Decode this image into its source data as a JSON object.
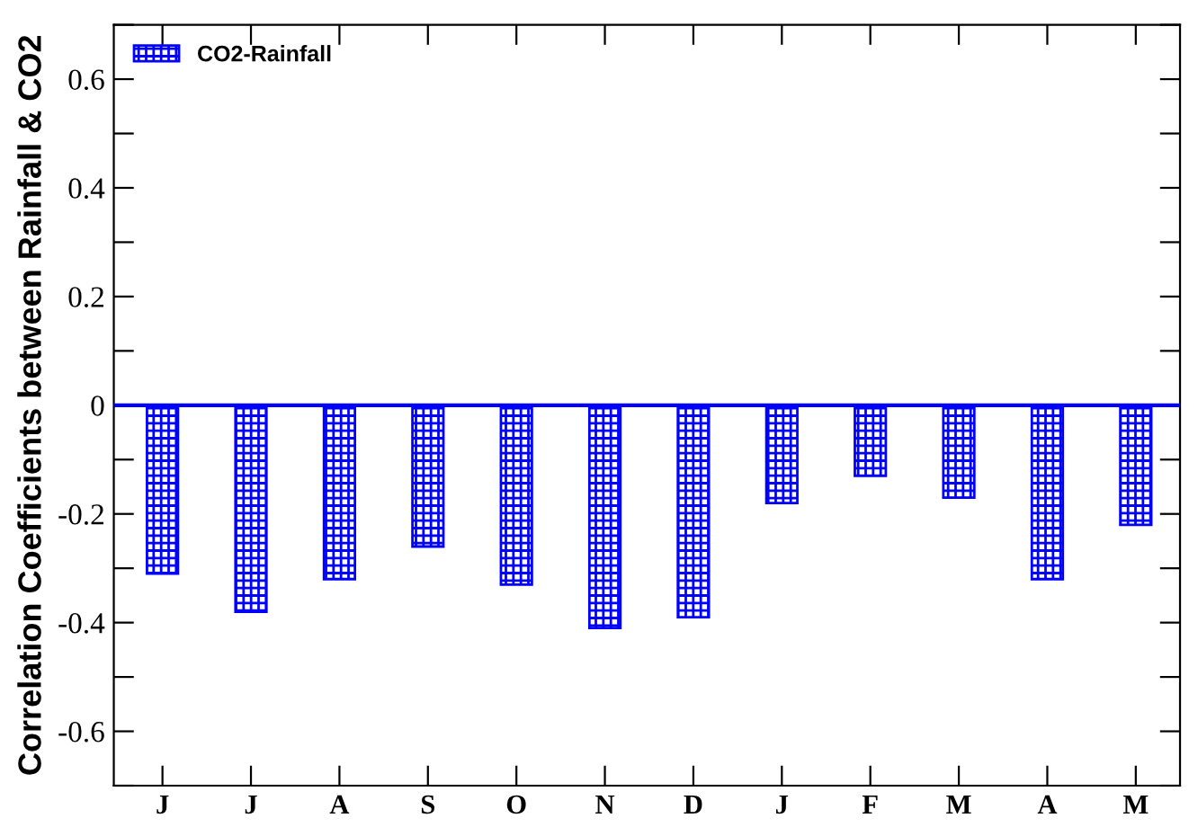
{
  "chart_data": {
    "type": "bar",
    "ylabel": "Correlation Coefficients between Rainfall & CO2",
    "categories": [
      "J",
      "J",
      "A",
      "S",
      "O",
      "N",
      "D",
      "J",
      "F",
      "M",
      "A",
      "M"
    ],
    "series": [
      {
        "name": "CO2-Rainfall",
        "color": "#0000ff",
        "values": [
          -0.31,
          -0.38,
          -0.32,
          -0.26,
          -0.33,
          -0.41,
          -0.39,
          -0.18,
          -0.13,
          -0.17,
          -0.32,
          -0.22
        ]
      }
    ],
    "ylim": [
      -0.7,
      0.7
    ],
    "yticks": [
      {
        "value": -0.7,
        "label": null
      },
      -0.6,
      {
        "value": -0.5,
        "label": null
      },
      -0.4,
      {
        "value": -0.3,
        "label": null
      },
      -0.2,
      {
        "value": -0.1,
        "label": null
      },
      0,
      {
        "value": 0.1,
        "label": null
      },
      0.2,
      {
        "value": 0.3,
        "label": null
      },
      0.4,
      {
        "value": 0.5,
        "label": null
      },
      0.6,
      {
        "value": 0.7,
        "label": null
      }
    ],
    "ref_lines": [
      {
        "axis": "y",
        "value": 0,
        "color": "#0000ff"
      }
    ],
    "grid": false,
    "legend": "top left"
  }
}
